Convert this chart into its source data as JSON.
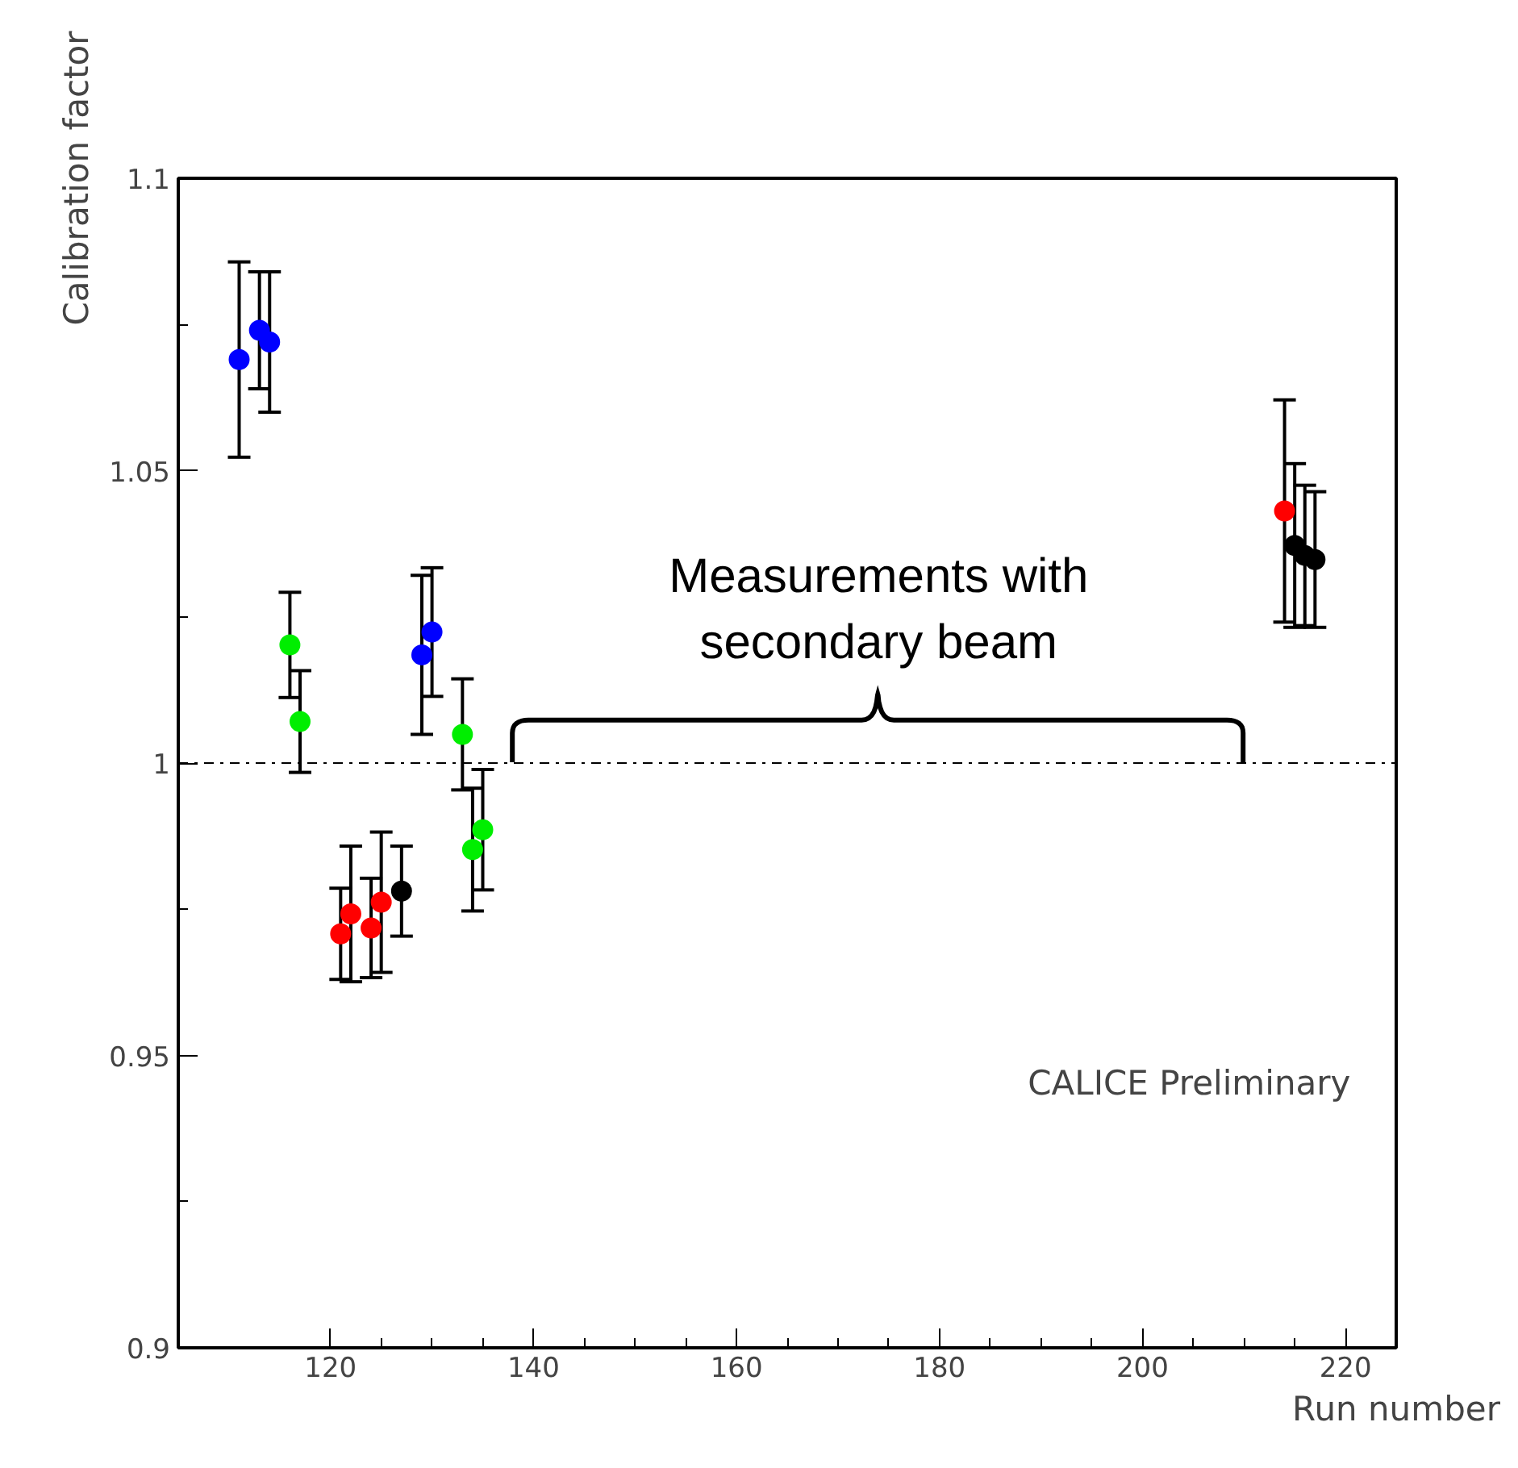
{
  "chart_data": {
    "type": "scatter",
    "xlabel": "Run number",
    "ylabel": "Calibration factor",
    "xlim": [
      105,
      225
    ],
    "xticks": [
      120,
      140,
      160,
      180,
      200,
      220
    ],
    "ylim": [
      0.9,
      1.1
    ],
    "yticks": [
      0.9,
      0.95,
      1,
      1.05,
      1.1
    ],
    "grid": false,
    "marker": "circle",
    "series": [
      {
        "color": "#0000ff",
        "x": [
          111,
          113,
          114,
          129,
          130
        ],
        "values": [
          1.069,
          1.074,
          1.072,
          1.0185,
          1.0224
        ],
        "errors": [
          0.0167,
          0.01,
          0.012,
          0.0136,
          0.011
        ]
      },
      {
        "color": "#00ee00",
        "x": [
          116,
          117,
          133,
          134,
          135
        ],
        "values": [
          1.0202,
          1.0071,
          1.0049,
          0.9852,
          0.9886
        ],
        "errors": [
          0.009,
          0.0087,
          0.0095,
          0.0105,
          0.0103
        ]
      },
      {
        "color": "#ff0000",
        "x": [
          121,
          122,
          124,
          125,
          214
        ],
        "values": [
          0.9708,
          0.9742,
          0.9718,
          0.9762,
          1.0431
        ],
        "errors": [
          0.0078,
          0.0116,
          0.0085,
          0.012,
          0.019
        ]
      },
      {
        "color": "#000000",
        "x": [
          127,
          215,
          216,
          217
        ],
        "values": [
          0.9781,
          1.0372,
          1.0355,
          1.0348
        ],
        "errors": [
          0.0077,
          0.014,
          0.012,
          0.0116
        ]
      }
    ],
    "ref_lines": [
      {
        "axis": "y",
        "value": 1,
        "color": "#000000",
        "line_style": "dashdot"
      }
    ],
    "annotations": [
      "Measurements with\nsecondary beam",
      "CALICE Preliminary"
    ]
  }
}
